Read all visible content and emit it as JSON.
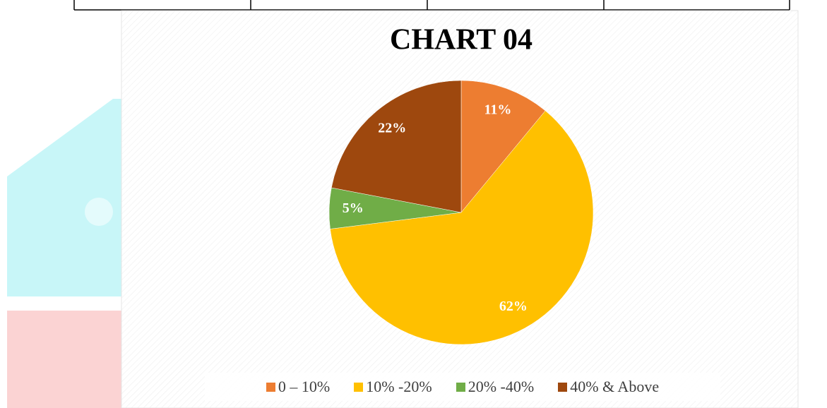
{
  "chart_data": {
    "type": "pie",
    "title": "CHART 04",
    "categories": [
      "0 – 10%",
      "10% -20%",
      "20% -40%",
      "40% & Above"
    ],
    "values": [
      11,
      62,
      5,
      22
    ],
    "value_labels": [
      "11%",
      "62%",
      "5%",
      "22%"
    ],
    "colors": [
      "#ED7D31",
      "#FFC000",
      "#70AD47",
      "#9E480E"
    ],
    "legend": "bottom"
  }
}
